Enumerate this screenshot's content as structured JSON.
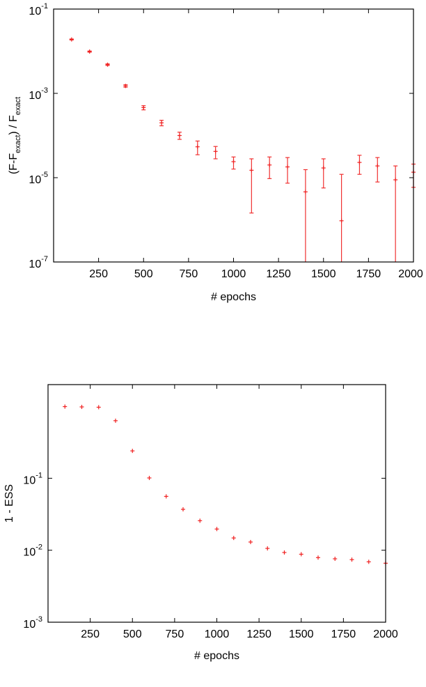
{
  "chart_data": [
    {
      "type": "scatter",
      "xlabel": "# epochs",
      "ylabel_parts": [
        "(F-F",
        "exact",
        ") / F",
        "exact"
      ],
      "xlim": [
        0,
        2000
      ],
      "ylim": [
        1e-07,
        0.1
      ],
      "yscale": "log",
      "grid": false,
      "xticks": [
        250,
        500,
        750,
        1000,
        1250,
        1500,
        1750,
        2000
      ],
      "xtick_labels": [
        "250",
        "500",
        "750",
        "1000",
        "1250",
        "1500",
        "1750",
        "2000"
      ],
      "yticks": [
        0.1,
        0.001,
        1e-05,
        1e-07
      ],
      "ytick_labels": [
        {
          "base": "10",
          "exp": "-1"
        },
        {
          "base": "10",
          "exp": "-3"
        },
        {
          "base": "10",
          "exp": "-5"
        },
        {
          "base": "10",
          "exp": "-7"
        }
      ],
      "marker": "plus",
      "color": "#f02020",
      "points": [
        {
          "x": 100,
          "y": 0.019,
          "ylow": 0.0185,
          "yhigh": 0.0195
        },
        {
          "x": 200,
          "y": 0.0098,
          "ylow": 0.0095,
          "yhigh": 0.0101
        },
        {
          "x": 300,
          "y": 0.0048,
          "ylow": 0.0046,
          "yhigh": 0.005
        },
        {
          "x": 400,
          "y": 0.0015,
          "ylow": 0.0014,
          "yhigh": 0.0016
        },
        {
          "x": 500,
          "y": 0.00046,
          "ylow": 0.000406,
          "yhigh": 0.00051
        },
        {
          "x": 600,
          "y": 0.0002,
          "ylow": 0.00017,
          "yhigh": 0.00023
        },
        {
          "x": 700,
          "y": 0.0001,
          "ylow": 8.1e-05,
          "yhigh": 0.00012
        },
        {
          "x": 800,
          "y": 5.4e-05,
          "ylow": 3.5e-05,
          "yhigh": 7.4e-05
        },
        {
          "x": 900,
          "y": 4.2e-05,
          "ylow": 2.8e-05,
          "yhigh": 5.5e-05
        },
        {
          "x": 1000,
          "y": 2.4e-05,
          "ylow": 1.6e-05,
          "yhigh": 3.1e-05
        },
        {
          "x": 1100,
          "y": 1.5e-05,
          "ylow": 1.45e-06,
          "yhigh": 2.8e-05
        },
        {
          "x": 1200,
          "y": 2e-05,
          "ylow": 9.5e-06,
          "yhigh": 3.1e-05
        },
        {
          "x": 1300,
          "y": 1.8e-05,
          "ylow": 7.4e-06,
          "yhigh": 3e-05
        },
        {
          "x": 1400,
          "y": 4.6e-06,
          "ylow": 0,
          "yhigh": 1.55e-05
        },
        {
          "x": 1500,
          "y": 1.7e-05,
          "ylow": 5.7e-06,
          "yhigh": 2.8e-05
        },
        {
          "x": 1600,
          "y": 9.5e-07,
          "ylow": 0,
          "yhigh": 1.2e-05
        },
        {
          "x": 1700,
          "y": 2.3e-05,
          "ylow": 1.2e-05,
          "yhigh": 3.4e-05
        },
        {
          "x": 1800,
          "y": 1.9e-05,
          "ylow": 7.9e-06,
          "yhigh": 3e-05
        },
        {
          "x": 1900,
          "y": 8.9e-06,
          "ylow": 0,
          "yhigh": 1.9e-05
        },
        {
          "x": 2000,
          "y": 1.35e-05,
          "ylow": 5.9e-06,
          "yhigh": 2.1e-05
        }
      ]
    },
    {
      "type": "scatter",
      "xlabel": "# epochs",
      "ylabel": "1 - ESS",
      "xlim": [
        0,
        2000
      ],
      "ylim": [
        0.001,
        2
      ],
      "yscale": "log",
      "grid": false,
      "xticks": [
        250,
        500,
        750,
        1000,
        1250,
        1500,
        1750,
        2000
      ],
      "xtick_labels": [
        "250",
        "500",
        "750",
        "1000",
        "1250",
        "1500",
        "1750",
        "2000"
      ],
      "yticks": [
        0.1,
        0.01,
        0.001
      ],
      "ytick_labels": [
        {
          "base": "10",
          "exp": "-1"
        },
        {
          "base": "10",
          "exp": "-2"
        },
        {
          "base": "10",
          "exp": "-3"
        }
      ],
      "marker": "plus",
      "color": "#f02020",
      "points": [
        {
          "x": 100,
          "y": 0.99
        },
        {
          "x": 200,
          "y": 0.98
        },
        {
          "x": 300,
          "y": 0.97
        },
        {
          "x": 400,
          "y": 0.63
        },
        {
          "x": 500,
          "y": 0.24
        },
        {
          "x": 600,
          "y": 0.101
        },
        {
          "x": 700,
          "y": 0.056
        },
        {
          "x": 800,
          "y": 0.037
        },
        {
          "x": 900,
          "y": 0.0257
        },
        {
          "x": 1000,
          "y": 0.0197
        },
        {
          "x": 1100,
          "y": 0.0148
        },
        {
          "x": 1200,
          "y": 0.013
        },
        {
          "x": 1300,
          "y": 0.0106
        },
        {
          "x": 1400,
          "y": 0.0093
        },
        {
          "x": 1500,
          "y": 0.0088
        },
        {
          "x": 1600,
          "y": 0.0079
        },
        {
          "x": 1700,
          "y": 0.0076
        },
        {
          "x": 1800,
          "y": 0.0074
        },
        {
          "x": 1900,
          "y": 0.0069
        },
        {
          "x": 2000,
          "y": 0.0066
        }
      ]
    }
  ]
}
